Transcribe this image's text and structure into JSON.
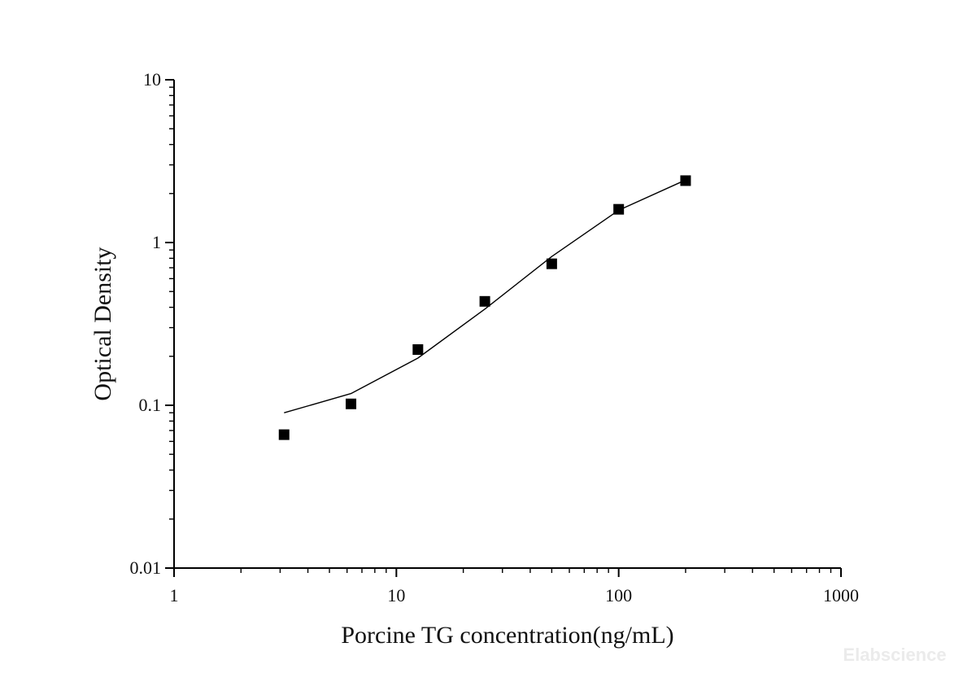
{
  "chart_data": {
    "type": "scatter",
    "title": "",
    "xlabel": "Porcine TG concentration(ng/mL)",
    "ylabel": "Optical Density",
    "xscale": "log",
    "yscale": "log",
    "xlim": [
      1,
      1000
    ],
    "ylim": [
      0.01,
      10
    ],
    "x_ticks": [
      {
        "value": 1,
        "label": "1"
      },
      {
        "value": 10,
        "label": "10"
      },
      {
        "value": 100,
        "label": "100"
      },
      {
        "value": 1000,
        "label": "1000"
      }
    ],
    "y_ticks": [
      {
        "value": 0.01,
        "label": "0.01"
      },
      {
        "value": 0.1,
        "label": "0.1"
      },
      {
        "value": 1,
        "label": "1"
      },
      {
        "value": 10,
        "label": "10"
      }
    ],
    "grid": false,
    "legend": "none",
    "series": [
      {
        "kind": "points",
        "marker": "square",
        "color": "#000000",
        "x": [
          3.125,
          6.25,
          12.5,
          25,
          50,
          100,
          200
        ],
        "y": [
          0.066,
          0.102,
          0.22,
          0.435,
          0.74,
          1.6,
          2.4
        ]
      },
      {
        "kind": "line",
        "color": "#000000",
        "x": [
          3.125,
          6.25,
          12.5,
          25,
          50,
          100,
          200
        ],
        "y": [
          0.09,
          0.118,
          0.195,
          0.39,
          0.82,
          1.58,
          2.42
        ]
      }
    ]
  },
  "watermark": "Elabscience"
}
